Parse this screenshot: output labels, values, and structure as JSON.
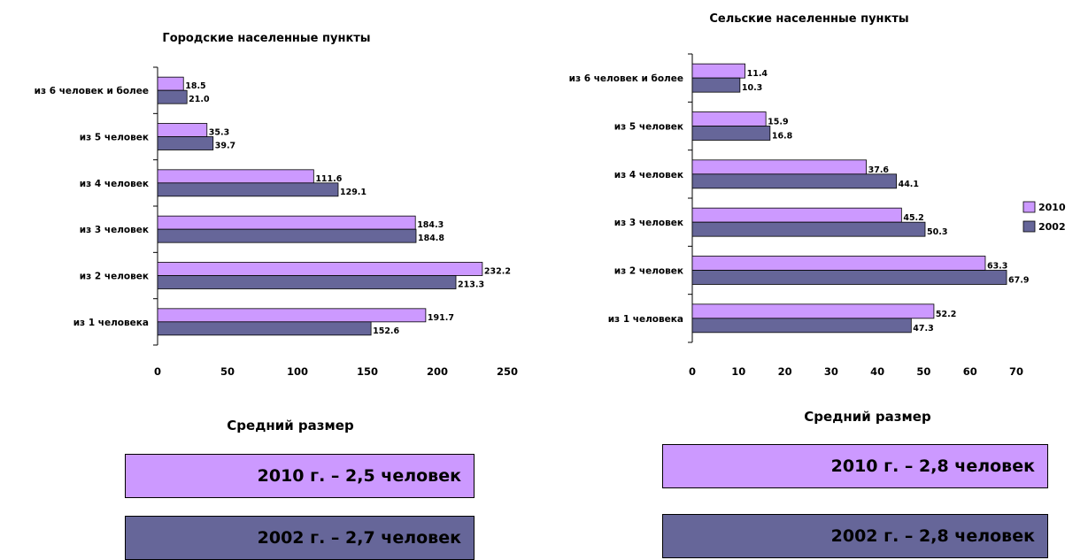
{
  "colors": {
    "s2010": "#cc99ff",
    "s2002": "#666699"
  },
  "legend": [
    "2010",
    "2002"
  ],
  "summary": {
    "urban": {
      "title": "Средний размер",
      "v2010": "2010 г. – 2,5 человек",
      "v2002": "2002 г. – 2,7 человек"
    },
    "rural": {
      "title": "Средний размер",
      "v2010": "2010 г. – 2,8 человек",
      "v2002": "2002 г. – 2,8 человек"
    }
  },
  "chart_data": [
    {
      "type": "bar",
      "orientation": "horizontal",
      "title": "Городские населенные пункты",
      "categories": [
        "из 1 человека",
        "из 2 человек",
        "из 3 человек",
        "из 4 человек",
        "из 5 человек",
        "из 6 человек и более"
      ],
      "series": [
        {
          "name": "2010",
          "values": [
            191.7,
            232.2,
            184.3,
            111.6,
            35.3,
            18.5
          ],
          "labels": [
            "191.7",
            "232.2",
            "184.3",
            "111.6",
            "35.3",
            "18.5"
          ]
        },
        {
          "name": "2002",
          "values": [
            152.6,
            213.3,
            184.8,
            129.1,
            39.7,
            21.0
          ],
          "labels": [
            "152.6",
            "213.3",
            "184.8",
            "129.1",
            "39.7",
            "21.0"
          ]
        }
      ],
      "xlim": [
        0,
        250
      ],
      "ticks": [
        0,
        50,
        100,
        150,
        200,
        250
      ],
      "tick_labels": [
        "0",
        "50",
        "100",
        "150",
        "200",
        "250"
      ],
      "legend": false
    },
    {
      "type": "bar",
      "orientation": "horizontal",
      "title": "Сельские населенные пункты",
      "categories": [
        "из 1 человека",
        "из 2 человек",
        "из 3 человек",
        "из 4 человек",
        "из 5 человек",
        "из 6 человек и более"
      ],
      "series": [
        {
          "name": "2010",
          "values": [
            52.2,
            63.3,
            45.2,
            37.6,
            15.9,
            11.4
          ],
          "labels": [
            "52.2",
            "63.3",
            "45.2",
            "37.6",
            "15.9",
            "11.4"
          ]
        },
        {
          "name": "2002",
          "values": [
            47.3,
            67.9,
            50.3,
            44.1,
            16.8,
            10.3
          ],
          "labels": [
            "47.3",
            "67.9",
            "50.3",
            "44.1",
            "16.8",
            "10.3"
          ]
        }
      ],
      "xlim": [
        0,
        70
      ],
      "ticks": [
        0,
        10,
        20,
        30,
        40,
        50,
        60,
        70
      ],
      "tick_labels": [
        "0",
        "10",
        "20",
        "30",
        "40",
        "50",
        "60",
        "70"
      ],
      "legend": true,
      "legend_position": "right"
    }
  ]
}
